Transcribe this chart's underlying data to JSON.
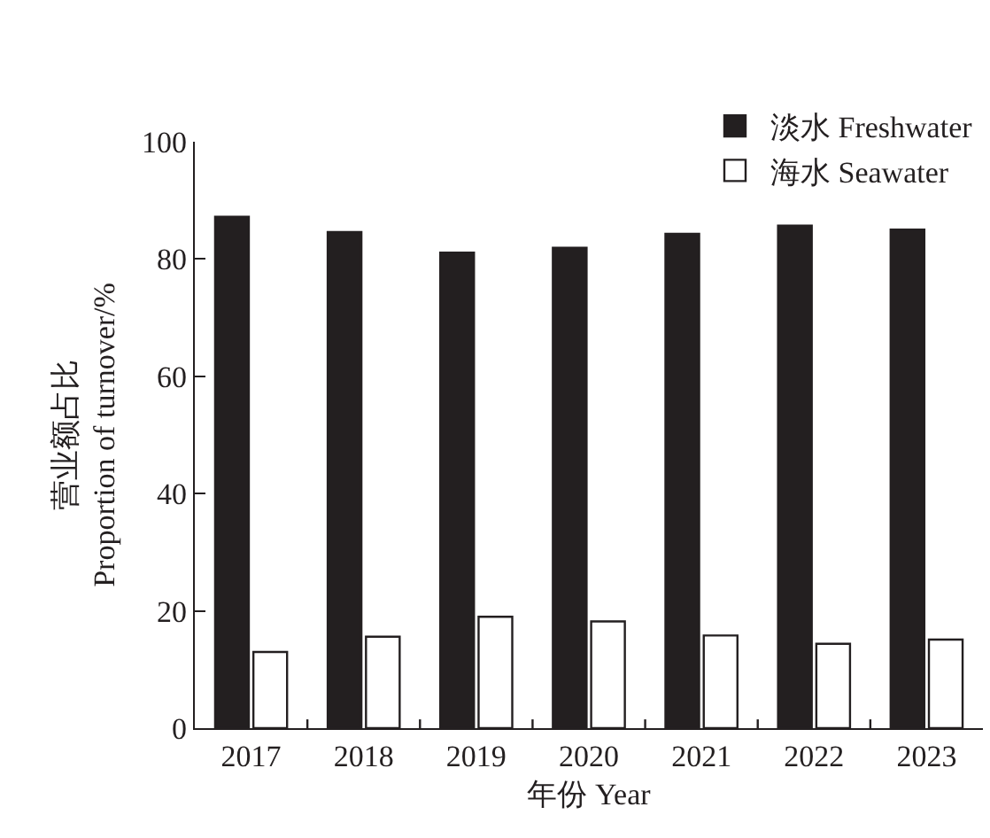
{
  "chart_data": {
    "type": "bar",
    "xlabel": "年份 Year",
    "ylabel": "营业额占比\nProportion of turnover/%",
    "categories": [
      "2017",
      "2018",
      "2019",
      "2020",
      "2021",
      "2022",
      "2023"
    ],
    "series": [
      {
        "name": "淡水 Freshwater",
        "color": "#231f20",
        "values": [
          87.2,
          84.6,
          81.1,
          81.9,
          84.3,
          85.7,
          85.0
        ]
      },
      {
        "name": "海水 Seawater",
        "color": "#ffffff",
        "values": [
          13.0,
          15.6,
          19.0,
          18.2,
          15.8,
          14.4,
          15.1
        ]
      }
    ],
    "ylim": [
      0,
      100
    ],
    "yticks": [
      0,
      20,
      40,
      60,
      80,
      100
    ],
    "grid": false,
    "legend": "top right"
  }
}
